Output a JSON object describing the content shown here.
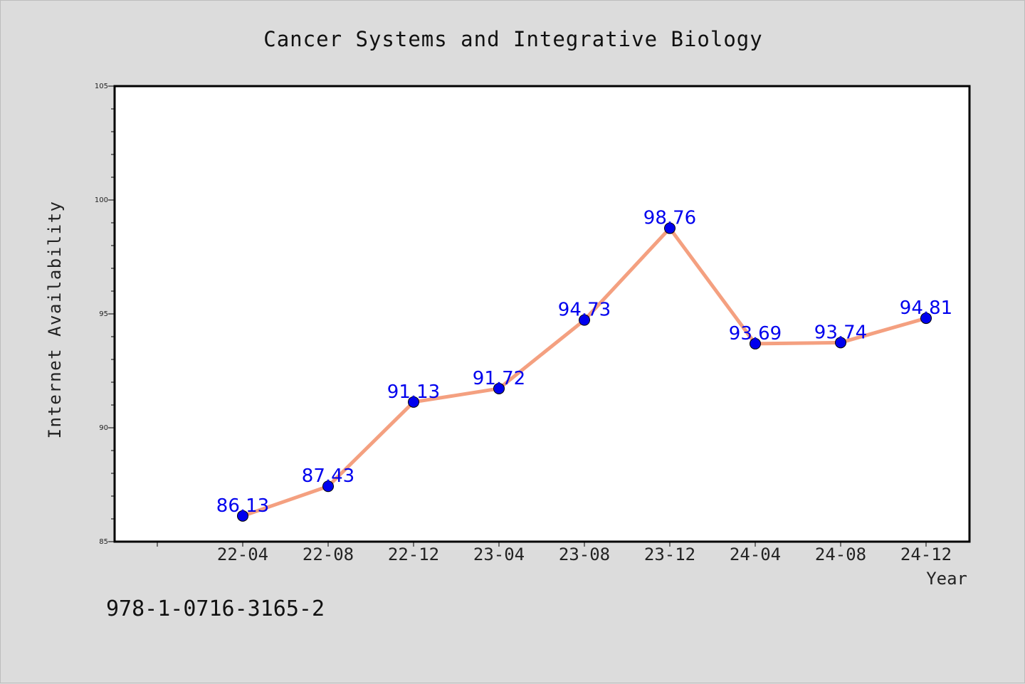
{
  "chart_data": {
    "type": "line",
    "title": "Cancer Systems and Integrative Biology",
    "xlabel": "Year",
    "ylabel": "Internet Availability",
    "categories": [
      "22-04",
      "22-08",
      "22-12",
      "23-04",
      "23-08",
      "23-12",
      "24-04",
      "24-08",
      "24-12"
    ],
    "series": [
      {
        "values": [
          86.13,
          87.43,
          91.13,
          91.72,
          94.73,
          98.76,
          93.69,
          93.74,
          94.81
        ],
        "labels": [
          "86.13",
          "87.43",
          "91.13",
          "91.72",
          "94.73",
          "98.76",
          "93.69",
          "93.74",
          "94.81"
        ],
        "line_color": "#f4a080",
        "marker_color": "#0000ee"
      }
    ],
    "ylim": [
      85,
      105
    ],
    "yticks": [
      "85",
      "90",
      "95",
      "100",
      "105"
    ],
    "grid": false,
    "legend": "none"
  },
  "footer_text": "978-1-0716-3165-2"
}
